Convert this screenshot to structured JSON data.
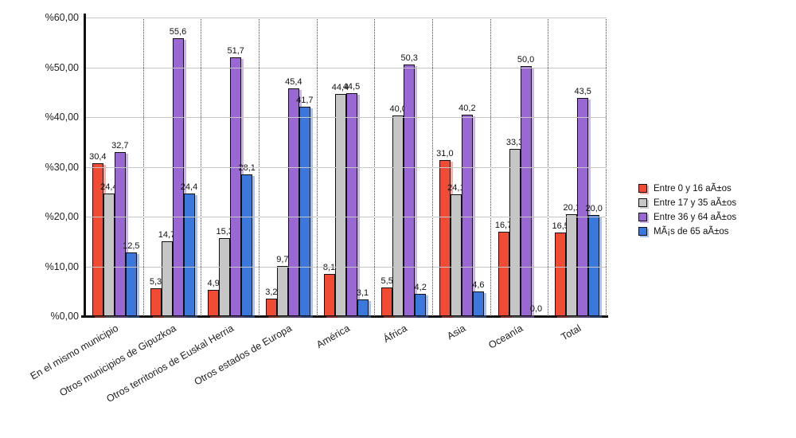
{
  "chart_data": {
    "type": "bar",
    "title": "",
    "xlabel": "",
    "ylabel": "%",
    "ylim": [
      0,
      60
    ],
    "grid": "horizontal-solid, vertical-dotted-group-separators",
    "legend_position": "right",
    "y_ticks": [
      {
        "label": "%60,00",
        "value": 60
      },
      {
        "label": "%50,00",
        "value": 50
      },
      {
        "label": "%40,00",
        "value": 40
      },
      {
        "label": "%30,00",
        "value": 30
      },
      {
        "label": "%20,00",
        "value": 20
      },
      {
        "label": "%10,00",
        "value": 10
      },
      {
        "label": "%0,00",
        "value": 0
      }
    ],
    "categories": [
      "En el mismo municipio",
      "Otros municipios de Gipuzkoa",
      "Otros territorios de Euskal Herria",
      "Otros estados de Europa",
      "América",
      "África",
      "Asia",
      "Oceanía",
      "Total"
    ],
    "series": [
      {
        "name": "Entre 0 y 16 aÃ±os",
        "color": "#f04b35",
        "shadow": "rgba(240,75,53,0.45)",
        "values": [
          "30,4",
          "5,3",
          "4,9",
          "3,2",
          "8,1",
          "5,5",
          "31,0",
          "16,7",
          "16,5"
        ]
      },
      {
        "name": "Entre 17 y 35 aÃ±os",
        "color": "#c6c6c6",
        "shadow": "rgba(150,150,150,0.45)",
        "values": [
          "24,4",
          "14,7",
          "15,3",
          "9,7",
          "44,4",
          "40,0",
          "24,1",
          "33,3",
          "20,1"
        ]
      },
      {
        "name": "Entre 36 y 64 aÃ±os",
        "color": "#9a68d2",
        "shadow": "rgba(154,104,210,0.5)",
        "values": [
          "32,7",
          "55,6",
          "51,7",
          "45,4",
          "44,5",
          "50,3",
          "40,2",
          "50,0",
          "43,5"
        ]
      },
      {
        "name": "MÃ¡s de 65 aÃ±os",
        "color": "#3c78dc",
        "shadow": "rgba(60,120,220,0.45)",
        "values": [
          "12,5",
          "24,4",
          "28,1",
          "41,7",
          "3,1",
          "4,2",
          "4,6",
          "0,0",
          "20,0"
        ]
      }
    ]
  }
}
